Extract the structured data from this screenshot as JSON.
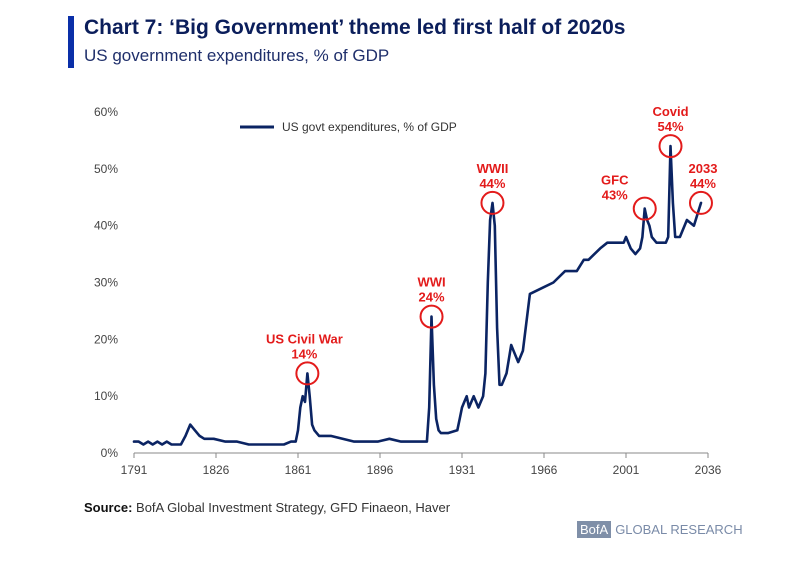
{
  "header": {
    "title": "Chart 7: ‘Big Government’ theme led first half of 2020s",
    "subtitle": "US government expenditures, % of GDP"
  },
  "footer": {
    "source_label": "Source:",
    "source_text": "BofA Global Investment Strategy, GFD Finaeon, Haver",
    "brand_box": "BofA",
    "brand_text": "GLOBAL RESEARCH"
  },
  "colors": {
    "line": "#0b2463",
    "annotation": "#e31b1b",
    "accent": "#0a2fa8"
  },
  "chart_data": {
    "type": "line",
    "title": "Chart 7: ‘Big Government’ theme led first half of 2020s",
    "subtitle": "US government expenditures, % of GDP",
    "xlim": [
      1791,
      2036
    ],
    "ylim": [
      0,
      60
    ],
    "x_ticks": [
      1791,
      1826,
      1861,
      1896,
      1931,
      1966,
      2001,
      2036
    ],
    "y_ticks": [
      0,
      10,
      20,
      30,
      40,
      50,
      60
    ],
    "y_tick_labels": [
      "0%",
      "10%",
      "20%",
      "30%",
      "40%",
      "50%",
      "60%"
    ],
    "grid": false,
    "legend_position": "top-left",
    "series": [
      {
        "name": "US govt expenditures, % of GDP",
        "x": [
          1791,
          1793,
          1795,
          1797,
          1799,
          1801,
          1803,
          1805,
          1807,
          1809,
          1811,
          1813,
          1815,
          1817,
          1819,
          1821,
          1823,
          1825,
          1830,
          1835,
          1840,
          1845,
          1850,
          1855,
          1858,
          1860,
          1861,
          1862,
          1863,
          1864,
          1865,
          1866,
          1867,
          1868,
          1870,
          1875,
          1880,
          1885,
          1890,
          1895,
          1900,
          1905,
          1910,
          1915,
          1916,
          1917,
          1918,
          1919,
          1920,
          1921,
          1922,
          1923,
          1925,
          1929,
          1930,
          1931,
          1932,
          1933,
          1934,
          1936,
          1938,
          1940,
          1941,
          1942,
          1943,
          1944,
          1945,
          1946,
          1947,
          1948,
          1950,
          1952,
          1953,
          1955,
          1957,
          1960,
          1965,
          1970,
          1975,
          1980,
          1983,
          1985,
          1990,
          1993,
          1995,
          2000,
          2001,
          2003,
          2005,
          2007,
          2008,
          2009,
          2010,
          2011,
          2012,
          2014,
          2016,
          2018,
          2019,
          2020,
          2021,
          2022,
          2023,
          2024,
          2027,
          2030,
          2033
        ],
        "values": [
          2,
          2,
          1.5,
          2,
          1.5,
          2,
          1.5,
          2,
          1.5,
          1.5,
          1.5,
          3,
          5,
          4,
          3,
          2.5,
          2.5,
          2.5,
          2,
          2,
          1.5,
          1.5,
          1.5,
          1.5,
          2,
          2,
          4,
          8,
          10,
          9,
          14,
          10,
          5,
          4,
          3,
          3,
          2.5,
          2,
          2,
          2,
          2.5,
          2,
          2,
          2,
          2,
          8,
          24,
          12,
          6,
          4,
          3.5,
          3.5,
          3.5,
          4,
          6,
          8,
          9,
          10,
          8,
          10,
          8,
          10,
          14,
          30,
          41,
          44,
          40,
          22,
          12,
          12,
          14,
          19,
          18,
          16,
          18,
          28,
          29,
          30,
          32,
          32,
          34,
          34,
          36,
          37,
          37,
          37,
          38,
          36,
          35,
          36,
          38,
          43,
          41,
          40,
          38,
          37,
          37,
          37,
          38,
          54,
          44,
          38,
          38,
          38,
          41,
          40,
          44
        ]
      }
    ],
    "annotations": [
      {
        "label": "US Civil War",
        "value_label": "14%",
        "x": 1865,
        "y": 14
      },
      {
        "label": "WWI",
        "value_label": "24%",
        "x": 1918,
        "y": 24
      },
      {
        "label": "WWII",
        "value_label": "44%",
        "x": 1944,
        "y": 44
      },
      {
        "label": "GFC",
        "value_label": "43%",
        "x": 2009,
        "y": 43
      },
      {
        "label": "Covid",
        "value_label": "54%",
        "x": 2020,
        "y": 54
      },
      {
        "label": "2033",
        "value_label": "44%",
        "x": 2033,
        "y": 44
      }
    ]
  }
}
